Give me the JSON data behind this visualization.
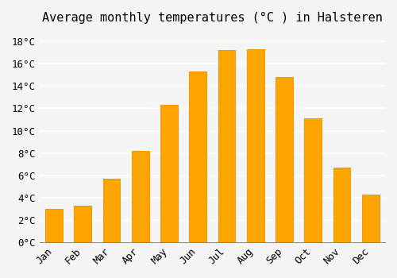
{
  "title": "Average monthly temperatures (°C ) in Halsteren",
  "months": [
    "Jan",
    "Feb",
    "Mar",
    "Apr",
    "May",
    "Jun",
    "Jul",
    "Aug",
    "Sep",
    "Oct",
    "Nov",
    "Dec"
  ],
  "values": [
    3.0,
    3.3,
    5.7,
    8.2,
    12.3,
    15.3,
    17.2,
    17.3,
    14.8,
    11.1,
    6.7,
    4.3
  ],
  "bar_color": "#FFA500",
  "bar_edge_color": "#FF8C00",
  "background_color": "#f5f5f5",
  "grid_color": "#ffffff",
  "ylim": [
    0,
    19
  ],
  "yticks": [
    0,
    2,
    4,
    6,
    8,
    10,
    12,
    14,
    16,
    18
  ],
  "title_fontsize": 11,
  "tick_fontsize": 9
}
